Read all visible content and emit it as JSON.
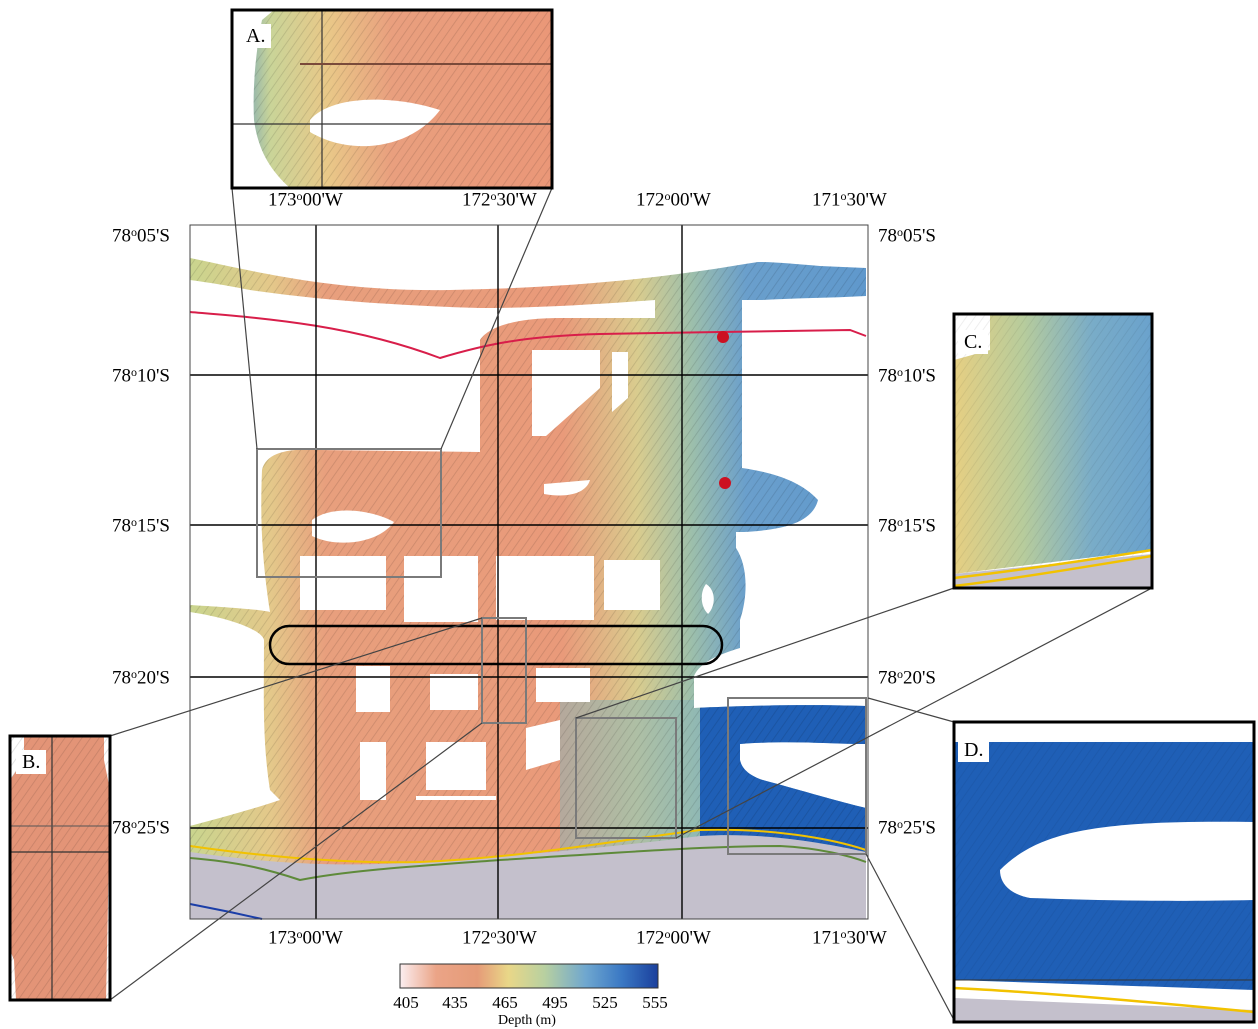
{
  "colors": {
    "shallow": "#e99373",
    "mid": "#e6d98a",
    "deep": "#1e5cb0",
    "land": "#c4c0cc",
    "red_line": "#d81e4a",
    "yellow_line": "#f2c200",
    "green_line": "#5e8a3a",
    "blue_line": "#1b3ea8",
    "site_marker": "#cc1122",
    "grid": "#000000",
    "callout": "#808080"
  },
  "map": {
    "longitude_labels": [
      "173",
      "00'W",
      "172",
      "30'W",
      "172",
      "00'W",
      "171",
      "30'W"
    ],
    "lon": [
      {
        "deg": "173",
        "min": "00'W"
      },
      {
        "deg": "172",
        "min": "30'W"
      },
      {
        "deg": "172",
        "min": "00'W"
      },
      {
        "deg": "171",
        "min": "30'W"
      }
    ],
    "lat": [
      {
        "deg": "78",
        "min": "05'S"
      },
      {
        "deg": "78",
        "min": "10'S"
      },
      {
        "deg": "78",
        "min": "15'S"
      },
      {
        "deg": "78",
        "min": "20'S"
      },
      {
        "deg": "78",
        "min": "25'S"
      }
    ],
    "degree_symbol": "o"
  },
  "insets": {
    "a": {
      "label": "A."
    },
    "b": {
      "label": "B."
    },
    "c": {
      "label": "C."
    },
    "d": {
      "label": "D."
    }
  },
  "colorbar": {
    "ticks": [
      "405",
      "435",
      "465",
      "495",
      "525",
      "555"
    ],
    "title": "Depth (m)"
  }
}
